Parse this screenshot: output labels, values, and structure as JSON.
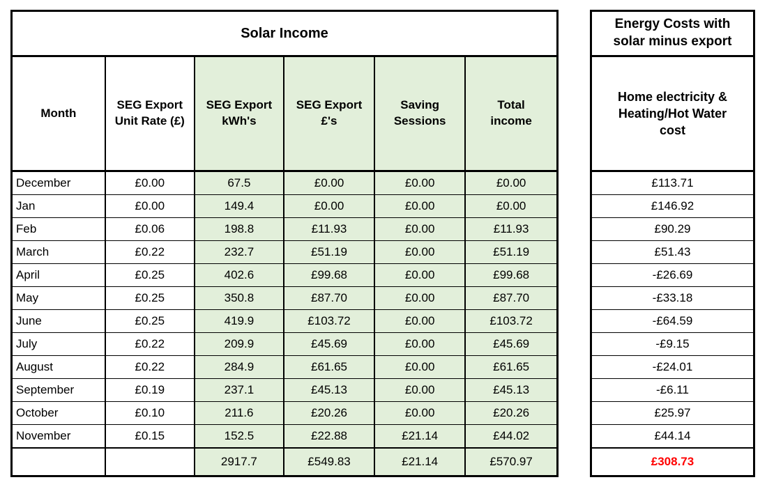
{
  "chart_data": [
    {
      "type": "table",
      "title": "Solar Income",
      "columns": [
        "Month",
        "SEG Export Unit Rate (£)",
        "SEG Export kWh's",
        "SEG Export £'s",
        "Saving Sessions",
        "Total income"
      ],
      "rows": [
        [
          "December",
          "£0.00",
          "67.5",
          "£0.00",
          "£0.00",
          "£0.00"
        ],
        [
          "Jan",
          "£0.00",
          "149.4",
          "£0.00",
          "£0.00",
          "£0.00"
        ],
        [
          "Feb",
          "£0.06",
          "198.8",
          "£11.93",
          "£0.00",
          "£11.93"
        ],
        [
          "March",
          "£0.22",
          "232.7",
          "£51.19",
          "£0.00",
          "£51.19"
        ],
        [
          "April",
          "£0.25",
          "402.6",
          "£99.68",
          "£0.00",
          "£99.68"
        ],
        [
          "May",
          "£0.25",
          "350.8",
          "£87.70",
          "£0.00",
          "£87.70"
        ],
        [
          "June",
          "£0.25",
          "419.9",
          "£103.72",
          "£0.00",
          "£103.72"
        ],
        [
          "July",
          "£0.22",
          "209.9",
          "£45.69",
          "£0.00",
          "£45.69"
        ],
        [
          "August",
          "£0.22",
          "284.9",
          "£61.65",
          "£0.00",
          "£61.65"
        ],
        [
          "September",
          "£0.19",
          "237.1",
          "£45.13",
          "£0.00",
          "£45.13"
        ],
        [
          "October",
          "£0.10",
          "211.6",
          "£20.26",
          "£0.00",
          "£20.26"
        ],
        [
          "November",
          "£0.15",
          "152.5",
          "£22.88",
          "£21.14",
          "£44.02"
        ]
      ],
      "totals_row": [
        "",
        "",
        "2917.7",
        "£549.83",
        "£21.14",
        "£570.97"
      ]
    },
    {
      "type": "table",
      "title": "Energy Costs with solar minus export",
      "columns": [
        "Home electricity & Heating/Hot Water cost"
      ],
      "rows": [
        [
          "£113.71"
        ],
        [
          "£146.92"
        ],
        [
          "£90.29"
        ],
        [
          "£51.43"
        ],
        [
          "-£26.69"
        ],
        [
          "-£33.18"
        ],
        [
          "-£64.59"
        ],
        [
          "-£9.15"
        ],
        [
          "-£24.01"
        ],
        [
          "-£6.11"
        ],
        [
          "£25.97"
        ],
        [
          "£44.14"
        ]
      ],
      "totals_row": [
        "£308.73"
      ]
    }
  ],
  "colors": {
    "green_fill": "#e2efda",
    "total_red": "#ff0000",
    "border": "#000000"
  }
}
